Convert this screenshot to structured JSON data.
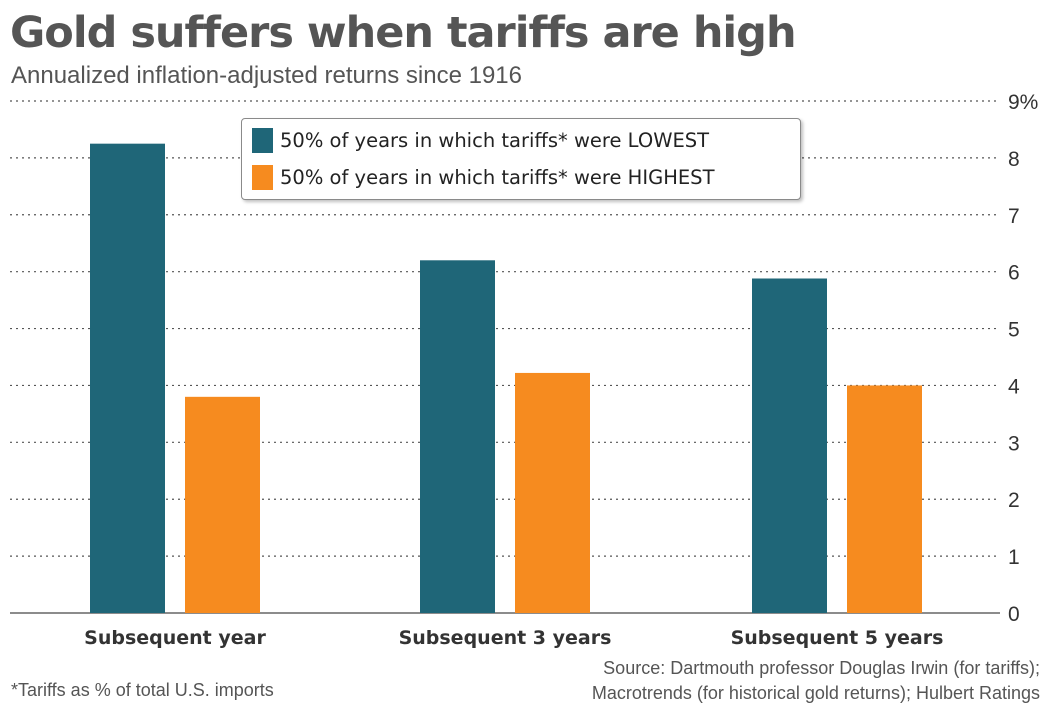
{
  "header": {
    "title": "Gold suffers when tariffs are high",
    "subtitle": "Annualized inflation-adjusted returns since 1916"
  },
  "colors": {
    "lowest": "#1f6678",
    "highest": "#f68b1f",
    "grid": "#555555",
    "text": "#333333"
  },
  "chart_data": {
    "type": "bar",
    "title": "Gold suffers when tariffs are high",
    "subtitle": "Annualized inflation-adjusted returns since 1916",
    "categories": [
      "Subsequent year",
      "Subsequent 3 years",
      "Subsequent 5 years"
    ],
    "series": [
      {
        "name": "50% of years in which tariffs* were LOWEST",
        "values": [
          8.25,
          6.2,
          5.88
        ]
      },
      {
        "name": "50% of years in which tariffs* were HIGHEST",
        "values": [
          3.8,
          4.22,
          4.0
        ]
      }
    ],
    "ylim": [
      0,
      9
    ],
    "yticks": [
      "0",
      "1",
      "2",
      "3",
      "4",
      "5",
      "6",
      "7",
      "8",
      "9%"
    ],
    "ylabel": "",
    "xlabel": "",
    "grid": true,
    "legend_position": "top-center",
    "axis_side": "right"
  },
  "footer": {
    "footnote": "*Tariffs as % of total U.S. imports",
    "source_line1": "Source: Dartmouth professor Douglas Irwin (for tariffs);",
    "source_line2": "Macrotrends (for historical gold returns); Hulbert Ratings"
  }
}
